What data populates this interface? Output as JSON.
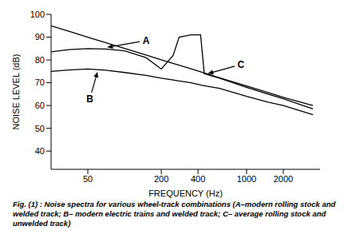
{
  "chart_data": {
    "type": "line",
    "x_label": "FREQUENCY (Hz)",
    "y_label": "NOISE LEVEL (dB)",
    "caption": "Fig. (1) : Noise spectra for various wheel-track combinations (A–modern rolling stock and welded track; B– modern electric trains and welded track; C– average rolling stock and unwelded track)",
    "log": "x",
    "grid": false,
    "xlim": [
      25,
      4000
    ],
    "xticks": [
      50,
      200,
      400,
      1000,
      2000
    ],
    "ylim": [
      32,
      100
    ],
    "yticks": [
      40,
      50,
      60,
      70,
      80,
      90,
      100
    ],
    "x": [
      25,
      35,
      50,
      70,
      100,
      150,
      200,
      250,
      280,
      350,
      420,
      450,
      600,
      1000,
      1500,
      2000,
      3500
    ],
    "series": [
      {
        "name": "A",
        "color": "#000000",
        "values": [
          83.6,
          84.5,
          85,
          84.8,
          84,
          81,
          76,
          82,
          90,
          91,
          91,
          74,
          72,
          68,
          65,
          63,
          58.5
        ]
      },
      {
        "name": "B",
        "color": "#000000",
        "values": [
          75,
          75.6,
          76,
          75.5,
          74.5,
          73.2,
          72,
          71.2,
          70.8,
          70,
          69,
          68.7,
          67.5,
          64,
          61.5,
          60,
          56
        ]
      },
      {
        "name": "C",
        "color": "#000000",
        "values": [
          95,
          92.6,
          90,
          87.6,
          85.1,
          82.2,
          80.1,
          78.5,
          77.7,
          76.1,
          74.8,
          74.3,
          72.2,
          68.6,
          65.7,
          63.6,
          60
        ]
      }
    ],
    "annotations": [
      {
        "text": "A",
        "x": 150,
        "y": 88.5,
        "target": [
          72,
          85.5
        ]
      },
      {
        "text": "B",
        "x": 52,
        "y": 63,
        "target": [
          60,
          74.8
        ]
      },
      {
        "text": "C",
        "x": 900,
        "y": 78,
        "target": [
          480,
          74
        ]
      }
    ]
  }
}
